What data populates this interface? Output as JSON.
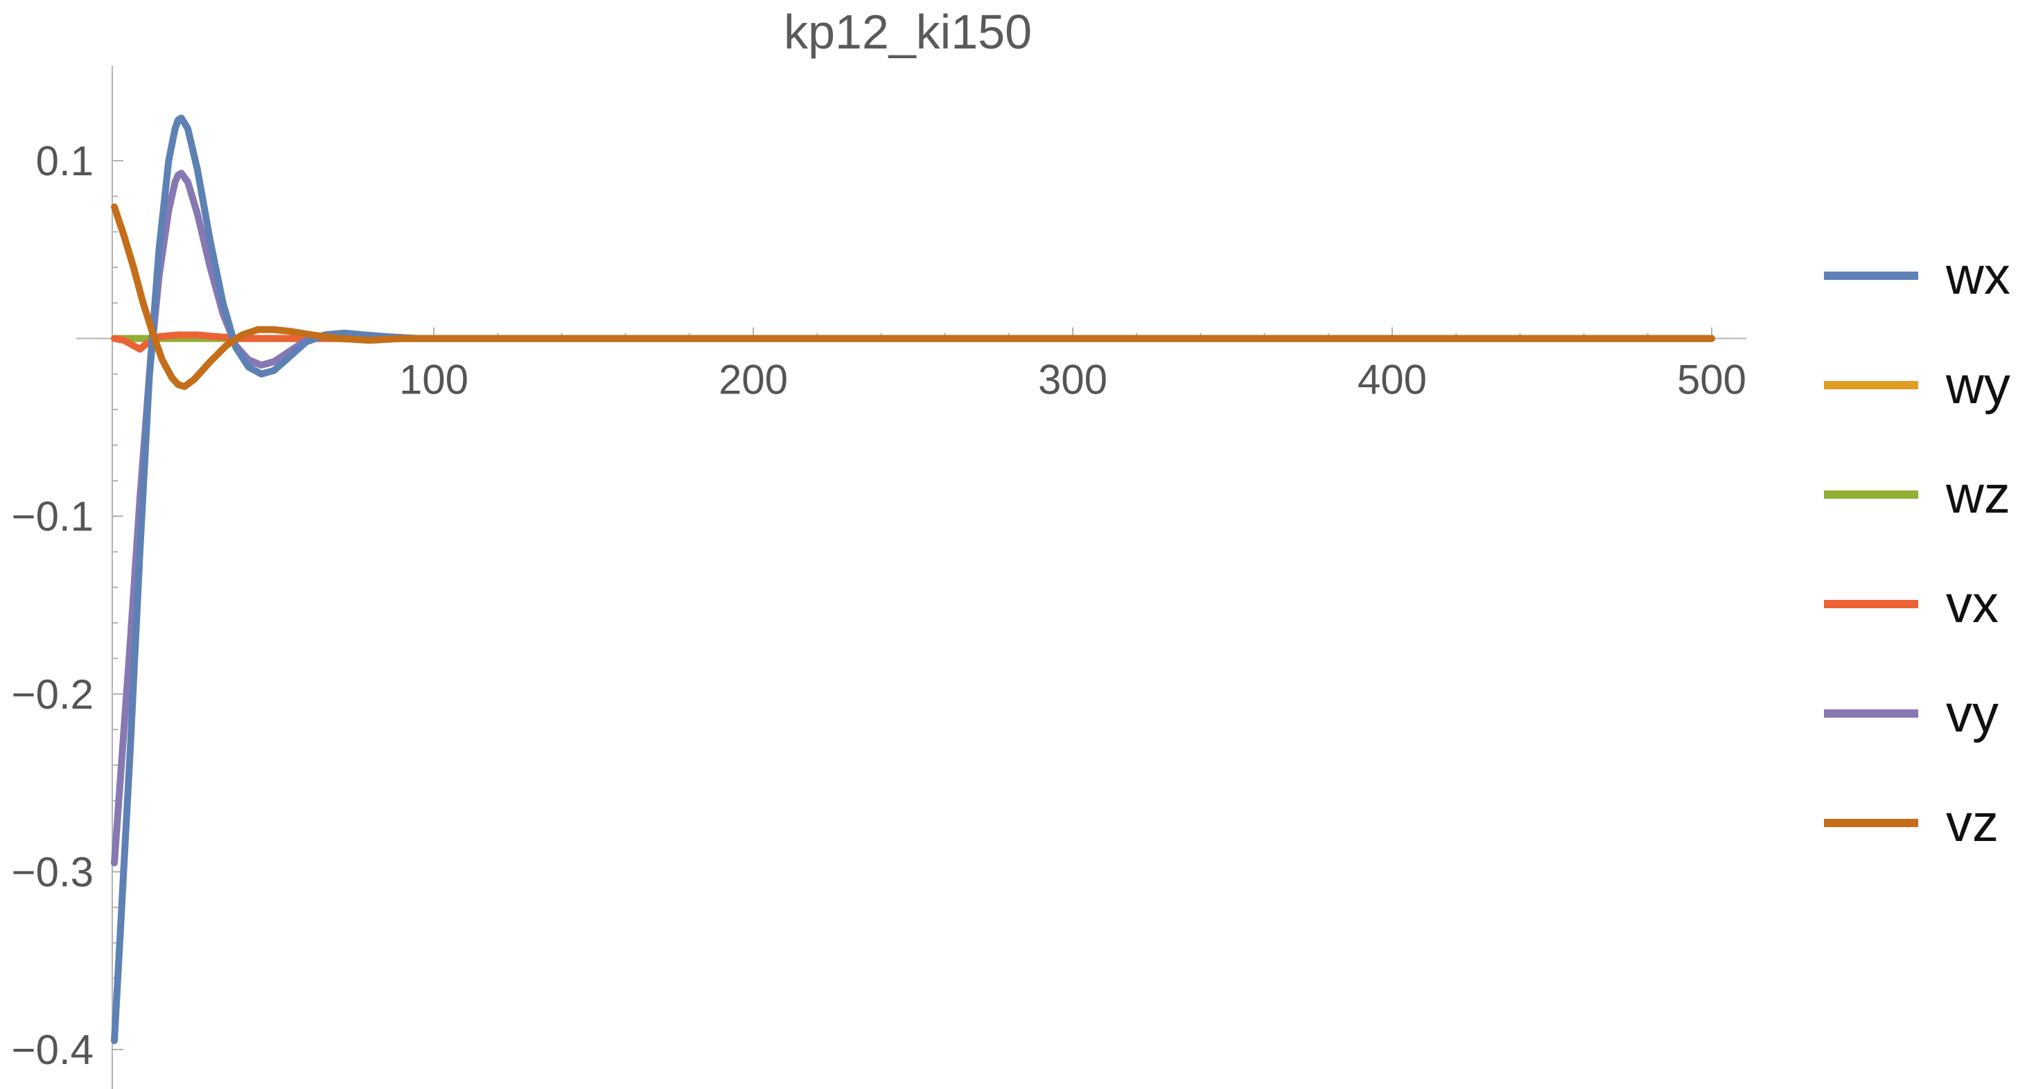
{
  "chart_data": {
    "type": "line",
    "title": "kp12_ki150",
    "xlabel": "",
    "ylabel": "",
    "xlim": [
      0,
      500
    ],
    "ylim": [
      -0.4,
      0.1
    ],
    "x_ticks": [
      {
        "value": 100,
        "label": "100"
      },
      {
        "value": 200,
        "label": "200"
      },
      {
        "value": 300,
        "label": "300"
      },
      {
        "value": 400,
        "label": "400"
      },
      {
        "value": 500,
        "label": "500"
      }
    ],
    "y_ticks": [
      {
        "value": 0.1,
        "label": "0.1"
      },
      {
        "value": -0.1,
        "label": "−0.1"
      },
      {
        "value": -0.2,
        "label": "−0.2"
      },
      {
        "value": -0.3,
        "label": "−0.3"
      },
      {
        "value": -0.4,
        "label": "−0.4"
      }
    ],
    "legend_position": "right",
    "series": [
      {
        "name": "wx",
        "color": "#5e81b5",
        "points": [
          [
            0,
            -0.395
          ],
          [
            2,
            -0.33
          ],
          [
            5,
            -0.23
          ],
          [
            8,
            -0.12
          ],
          [
            11,
            -0.02
          ],
          [
            14,
            0.05
          ],
          [
            17,
            0.1
          ],
          [
            19,
            0.118
          ],
          [
            20,
            0.123
          ],
          [
            21,
            0.124
          ],
          [
            23,
            0.118
          ],
          [
            26,
            0.095
          ],
          [
            30,
            0.055
          ],
          [
            34,
            0.02
          ],
          [
            38,
            -0.005
          ],
          [
            42,
            -0.016
          ],
          [
            46,
            -0.02
          ],
          [
            50,
            -0.018
          ],
          [
            55,
            -0.01
          ],
          [
            60,
            -0.002
          ],
          [
            66,
            0.002
          ],
          [
            72,
            0.003
          ],
          [
            78,
            0.002
          ],
          [
            85,
            0.001
          ],
          [
            95,
            0.0
          ],
          [
            110,
            0.0
          ],
          [
            150,
            0.0
          ],
          [
            250,
            0.0
          ],
          [
            350,
            0.0
          ],
          [
            450,
            0.0
          ],
          [
            500,
            0.0
          ]
        ]
      },
      {
        "name": "wy",
        "color": "#e19c24",
        "points": [
          [
            0,
            0.0
          ],
          [
            100,
            0.0
          ],
          [
            200,
            0.0
          ],
          [
            300,
            0.0
          ],
          [
            400,
            0.0
          ],
          [
            500,
            0.0
          ]
        ]
      },
      {
        "name": "wz",
        "color": "#8fb032",
        "points": [
          [
            0,
            0.0
          ],
          [
            100,
            0.0
          ],
          [
            200,
            0.0
          ],
          [
            300,
            0.0
          ],
          [
            400,
            0.0
          ],
          [
            500,
            0.0
          ]
        ]
      },
      {
        "name": "vx",
        "color": "#eb6235",
        "points": [
          [
            0,
            0.0
          ],
          [
            3,
            -0.001
          ],
          [
            6,
            -0.004
          ],
          [
            8,
            -0.006
          ],
          [
            10,
            -0.003
          ],
          [
            14,
            0.001
          ],
          [
            20,
            0.002
          ],
          [
            26,
            0.002
          ],
          [
            32,
            0.001
          ],
          [
            40,
            0.0
          ],
          [
            50,
            0.0
          ],
          [
            100,
            0.0
          ],
          [
            200,
            0.0
          ],
          [
            300,
            0.0
          ],
          [
            400,
            0.0
          ],
          [
            500,
            0.0
          ]
        ]
      },
      {
        "name": "vy",
        "color": "#8778b3",
        "points": [
          [
            0,
            -0.295
          ],
          [
            2,
            -0.245
          ],
          [
            5,
            -0.17
          ],
          [
            8,
            -0.09
          ],
          [
            11,
            -0.02
          ],
          [
            14,
            0.035
          ],
          [
            17,
            0.072
          ],
          [
            19,
            0.088
          ],
          [
            20,
            0.092
          ],
          [
            21,
            0.093
          ],
          [
            23,
            0.088
          ],
          [
            26,
            0.07
          ],
          [
            30,
            0.04
          ],
          [
            34,
            0.014
          ],
          [
            38,
            -0.004
          ],
          [
            42,
            -0.012
          ],
          [
            46,
            -0.015
          ],
          [
            50,
            -0.013
          ],
          [
            55,
            -0.007
          ],
          [
            60,
            -0.001
          ],
          [
            66,
            0.002
          ],
          [
            72,
            0.003
          ],
          [
            78,
            0.002
          ],
          [
            85,
            0.001
          ],
          [
            95,
            0.0
          ],
          [
            110,
            0.0
          ],
          [
            150,
            0.0
          ],
          [
            250,
            0.0
          ],
          [
            350,
            0.0
          ],
          [
            450,
            0.0
          ],
          [
            500,
            0.0
          ]
        ]
      },
      {
        "name": "vz",
        "color": "#c56e1a",
        "points": [
          [
            0,
            0.074
          ],
          [
            3,
            0.058
          ],
          [
            6,
            0.04
          ],
          [
            9,
            0.02
          ],
          [
            12,
            0.003
          ],
          [
            15,
            -0.012
          ],
          [
            18,
            -0.022
          ],
          [
            20,
            -0.026
          ],
          [
            22,
            -0.027
          ],
          [
            25,
            -0.023
          ],
          [
            30,
            -0.013
          ],
          [
            35,
            -0.004
          ],
          [
            40,
            0.002
          ],
          [
            45,
            0.005
          ],
          [
            50,
            0.005
          ],
          [
            55,
            0.004
          ],
          [
            62,
            0.002
          ],
          [
            70,
            0.0
          ],
          [
            80,
            -0.001
          ],
          [
            90,
            0.0
          ],
          [
            110,
            0.0
          ],
          [
            150,
            0.0
          ],
          [
            250,
            0.0
          ],
          [
            350,
            0.0
          ],
          [
            450,
            0.0
          ],
          [
            500,
            0.0
          ]
        ]
      }
    ]
  }
}
